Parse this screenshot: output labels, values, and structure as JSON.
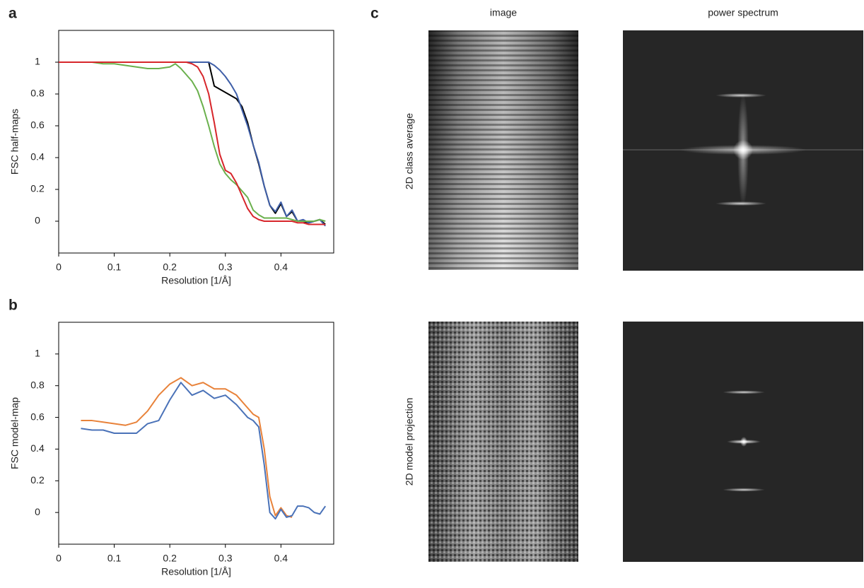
{
  "panel_labels": [
    "a",
    "b",
    "c"
  ],
  "panel_c": {
    "column_labels": [
      "image",
      "power spectrum"
    ],
    "row_labels": [
      "2D class average",
      "2D model projection"
    ]
  },
  "chart_data": [
    {
      "type": "line",
      "x_label": "Resolution [1/Å]",
      "y_label": "FSC half-maps",
      "x": [
        0,
        0.02,
        0.04,
        0.06,
        0.08,
        0.1,
        0.12,
        0.14,
        0.16,
        0.18,
        0.2,
        0.21,
        0.22,
        0.23,
        0.24,
        0.25,
        0.26,
        0.27,
        0.28,
        0.29,
        0.3,
        0.31,
        0.32,
        0.33,
        0.34,
        0.35,
        0.36,
        0.37,
        0.38,
        0.39,
        0.4,
        0.41,
        0.42,
        0.43,
        0.44,
        0.45,
        0.46,
        0.47,
        0.48
      ],
      "series": [
        {
          "color": "#000000",
          "values": [
            1,
            1,
            1,
            1,
            1,
            1,
            1,
            1,
            1,
            1,
            1,
            1,
            1,
            1,
            1,
            1,
            1,
            1,
            0.85,
            0.83,
            0.81,
            0.79,
            0.77,
            0.72,
            0.62,
            0.48,
            0.36,
            0.22,
            0.1,
            0.05,
            0.11,
            0.03,
            0.06,
            0,
            0,
            -0.01,
            0,
            0.01,
            -0.02
          ]
        },
        {
          "color": "#3f5fa8",
          "values": [
            1,
            1,
            1,
            1,
            1,
            1,
            1,
            1,
            1,
            1,
            1,
            1,
            1,
            1,
            1,
            1,
            1,
            1,
            0.98,
            0.95,
            0.91,
            0.86,
            0.8,
            0.7,
            0.6,
            0.48,
            0.37,
            0.22,
            0.1,
            0.06,
            0.12,
            0.03,
            0.07,
            0,
            0.01,
            -0.01,
            0,
            0.01,
            -0.03
          ]
        },
        {
          "color": "#6ab04c",
          "values": [
            1,
            1,
            1,
            1,
            0.99,
            0.99,
            0.98,
            0.97,
            0.96,
            0.96,
            0.97,
            0.99,
            0.96,
            0.92,
            0.88,
            0.82,
            0.72,
            0.6,
            0.47,
            0.36,
            0.3,
            0.26,
            0.23,
            0.19,
            0.15,
            0.07,
            0.04,
            0.02,
            0.02,
            0.02,
            0.02,
            0.02,
            0.01,
            0,
            0,
            0,
            0,
            0.01,
            0
          ]
        },
        {
          "color": "#d7262b",
          "values": [
            1,
            1,
            1,
            1,
            1,
            1,
            1,
            1,
            1,
            1,
            1,
            1,
            1,
            1,
            0.99,
            0.97,
            0.91,
            0.8,
            0.62,
            0.42,
            0.32,
            0.3,
            0.24,
            0.16,
            0.08,
            0.03,
            0.01,
            0,
            0,
            0,
            0,
            0,
            0,
            -0.01,
            -0.01,
            -0.02,
            -0.02,
            -0.02,
            -0.02
          ]
        }
      ],
      "xlim": [
        0,
        0.495
      ],
      "ylim": [
        -0.2,
        1.2
      ],
      "xticks": [
        0,
        0.1,
        0.2,
        0.3,
        0.4
      ],
      "yticks": [
        0,
        0.2,
        0.4,
        0.6,
        0.8,
        1
      ]
    },
    {
      "type": "line",
      "x_label": "Resolution [1/Å]",
      "y_label": "FSC model-map",
      "x": [
        0.04,
        0.06,
        0.08,
        0.1,
        0.12,
        0.14,
        0.16,
        0.18,
        0.2,
        0.22,
        0.24,
        0.26,
        0.28,
        0.3,
        0.32,
        0.34,
        0.35,
        0.36,
        0.37,
        0.38,
        0.39,
        0.4,
        0.41,
        0.42,
        0.43,
        0.44,
        0.45,
        0.46,
        0.47,
        0.48
      ],
      "series": [
        {
          "color": "#e8823a",
          "values": [
            0.58,
            0.58,
            0.57,
            0.56,
            0.55,
            0.57,
            0.64,
            0.74,
            0.81,
            0.85,
            0.8,
            0.82,
            0.78,
            0.78,
            0.74,
            0.66,
            0.62,
            0.6,
            0.4,
            0.1,
            -0.02,
            0.03,
            -0.02,
            -0.03,
            null,
            null,
            null,
            null,
            null,
            null
          ]
        },
        {
          "color": "#4a72b8",
          "values": [
            0.53,
            0.52,
            0.52,
            0.5,
            0.5,
            0.5,
            0.56,
            0.58,
            0.71,
            0.82,
            0.74,
            0.77,
            0.72,
            0.74,
            0.68,
            0.6,
            0.58,
            0.54,
            0.3,
            0,
            -0.04,
            0.02,
            -0.03,
            -0.02,
            0.04,
            0.04,
            0.03,
            0,
            -0.01,
            0.04
          ]
        }
      ],
      "xlim": [
        0,
        0.495
      ],
      "ylim": [
        -0.2,
        1.2
      ],
      "xticks": [
        0,
        0.1,
        0.2,
        0.3,
        0.4
      ],
      "yticks": [
        0,
        0.2,
        0.4,
        0.6,
        0.8,
        1
      ]
    }
  ]
}
